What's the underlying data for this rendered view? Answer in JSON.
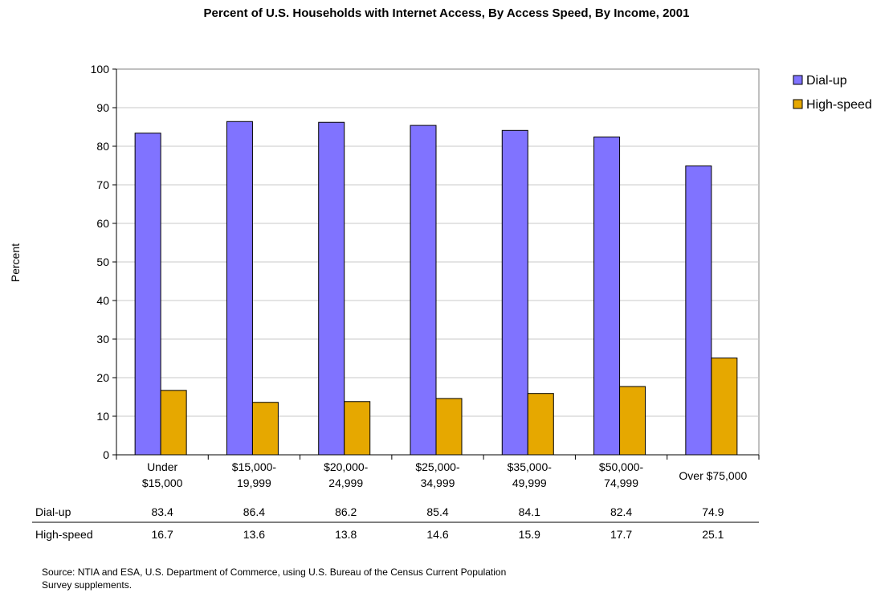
{
  "chart_data": {
    "type": "bar",
    "title": "Percent of U.S. Households with Internet Access, By Access Speed, By Income, 2001",
    "ylabel": "Percent",
    "xlabel": "",
    "ylim": [
      0,
      100
    ],
    "yticks": [
      0,
      10,
      20,
      30,
      40,
      50,
      60,
      70,
      80,
      90,
      100
    ],
    "grid": true,
    "legend_position": "top-right",
    "categories": [
      [
        "Under",
        "$15,000"
      ],
      [
        "$15,000-",
        "19,999"
      ],
      [
        "$20,000-",
        "24,999"
      ],
      [
        "$25,000-",
        "34,999"
      ],
      [
        "$35,000-",
        "49,999"
      ],
      [
        "$50,000-",
        "74,999"
      ],
      [
        "Over $75,000"
      ]
    ],
    "series": [
      {
        "name": "Dial-up",
        "color": "#8073ff",
        "values": [
          83.4,
          86.4,
          86.2,
          85.4,
          84.1,
          82.4,
          74.9
        ],
        "table_values": [
          "83.4",
          "86.4",
          "86.2",
          "85.4",
          "84.1",
          "82.4",
          "74.9"
        ]
      },
      {
        "name": "High-speed",
        "color": "#e6a800",
        "values": [
          16.7,
          13.6,
          13.8,
          14.6,
          15.9,
          17.7,
          25.1
        ],
        "table_values": [
          "16.7",
          "13.6",
          "13.8",
          "14.6",
          "15.9",
          "17.7",
          "25.1"
        ]
      }
    ]
  },
  "source": {
    "line1": "Source:  NTIA and ESA, U.S. Department of Commerce, using U.S. Bureau of the Census Current Population",
    "line2": "Survey supplements."
  }
}
